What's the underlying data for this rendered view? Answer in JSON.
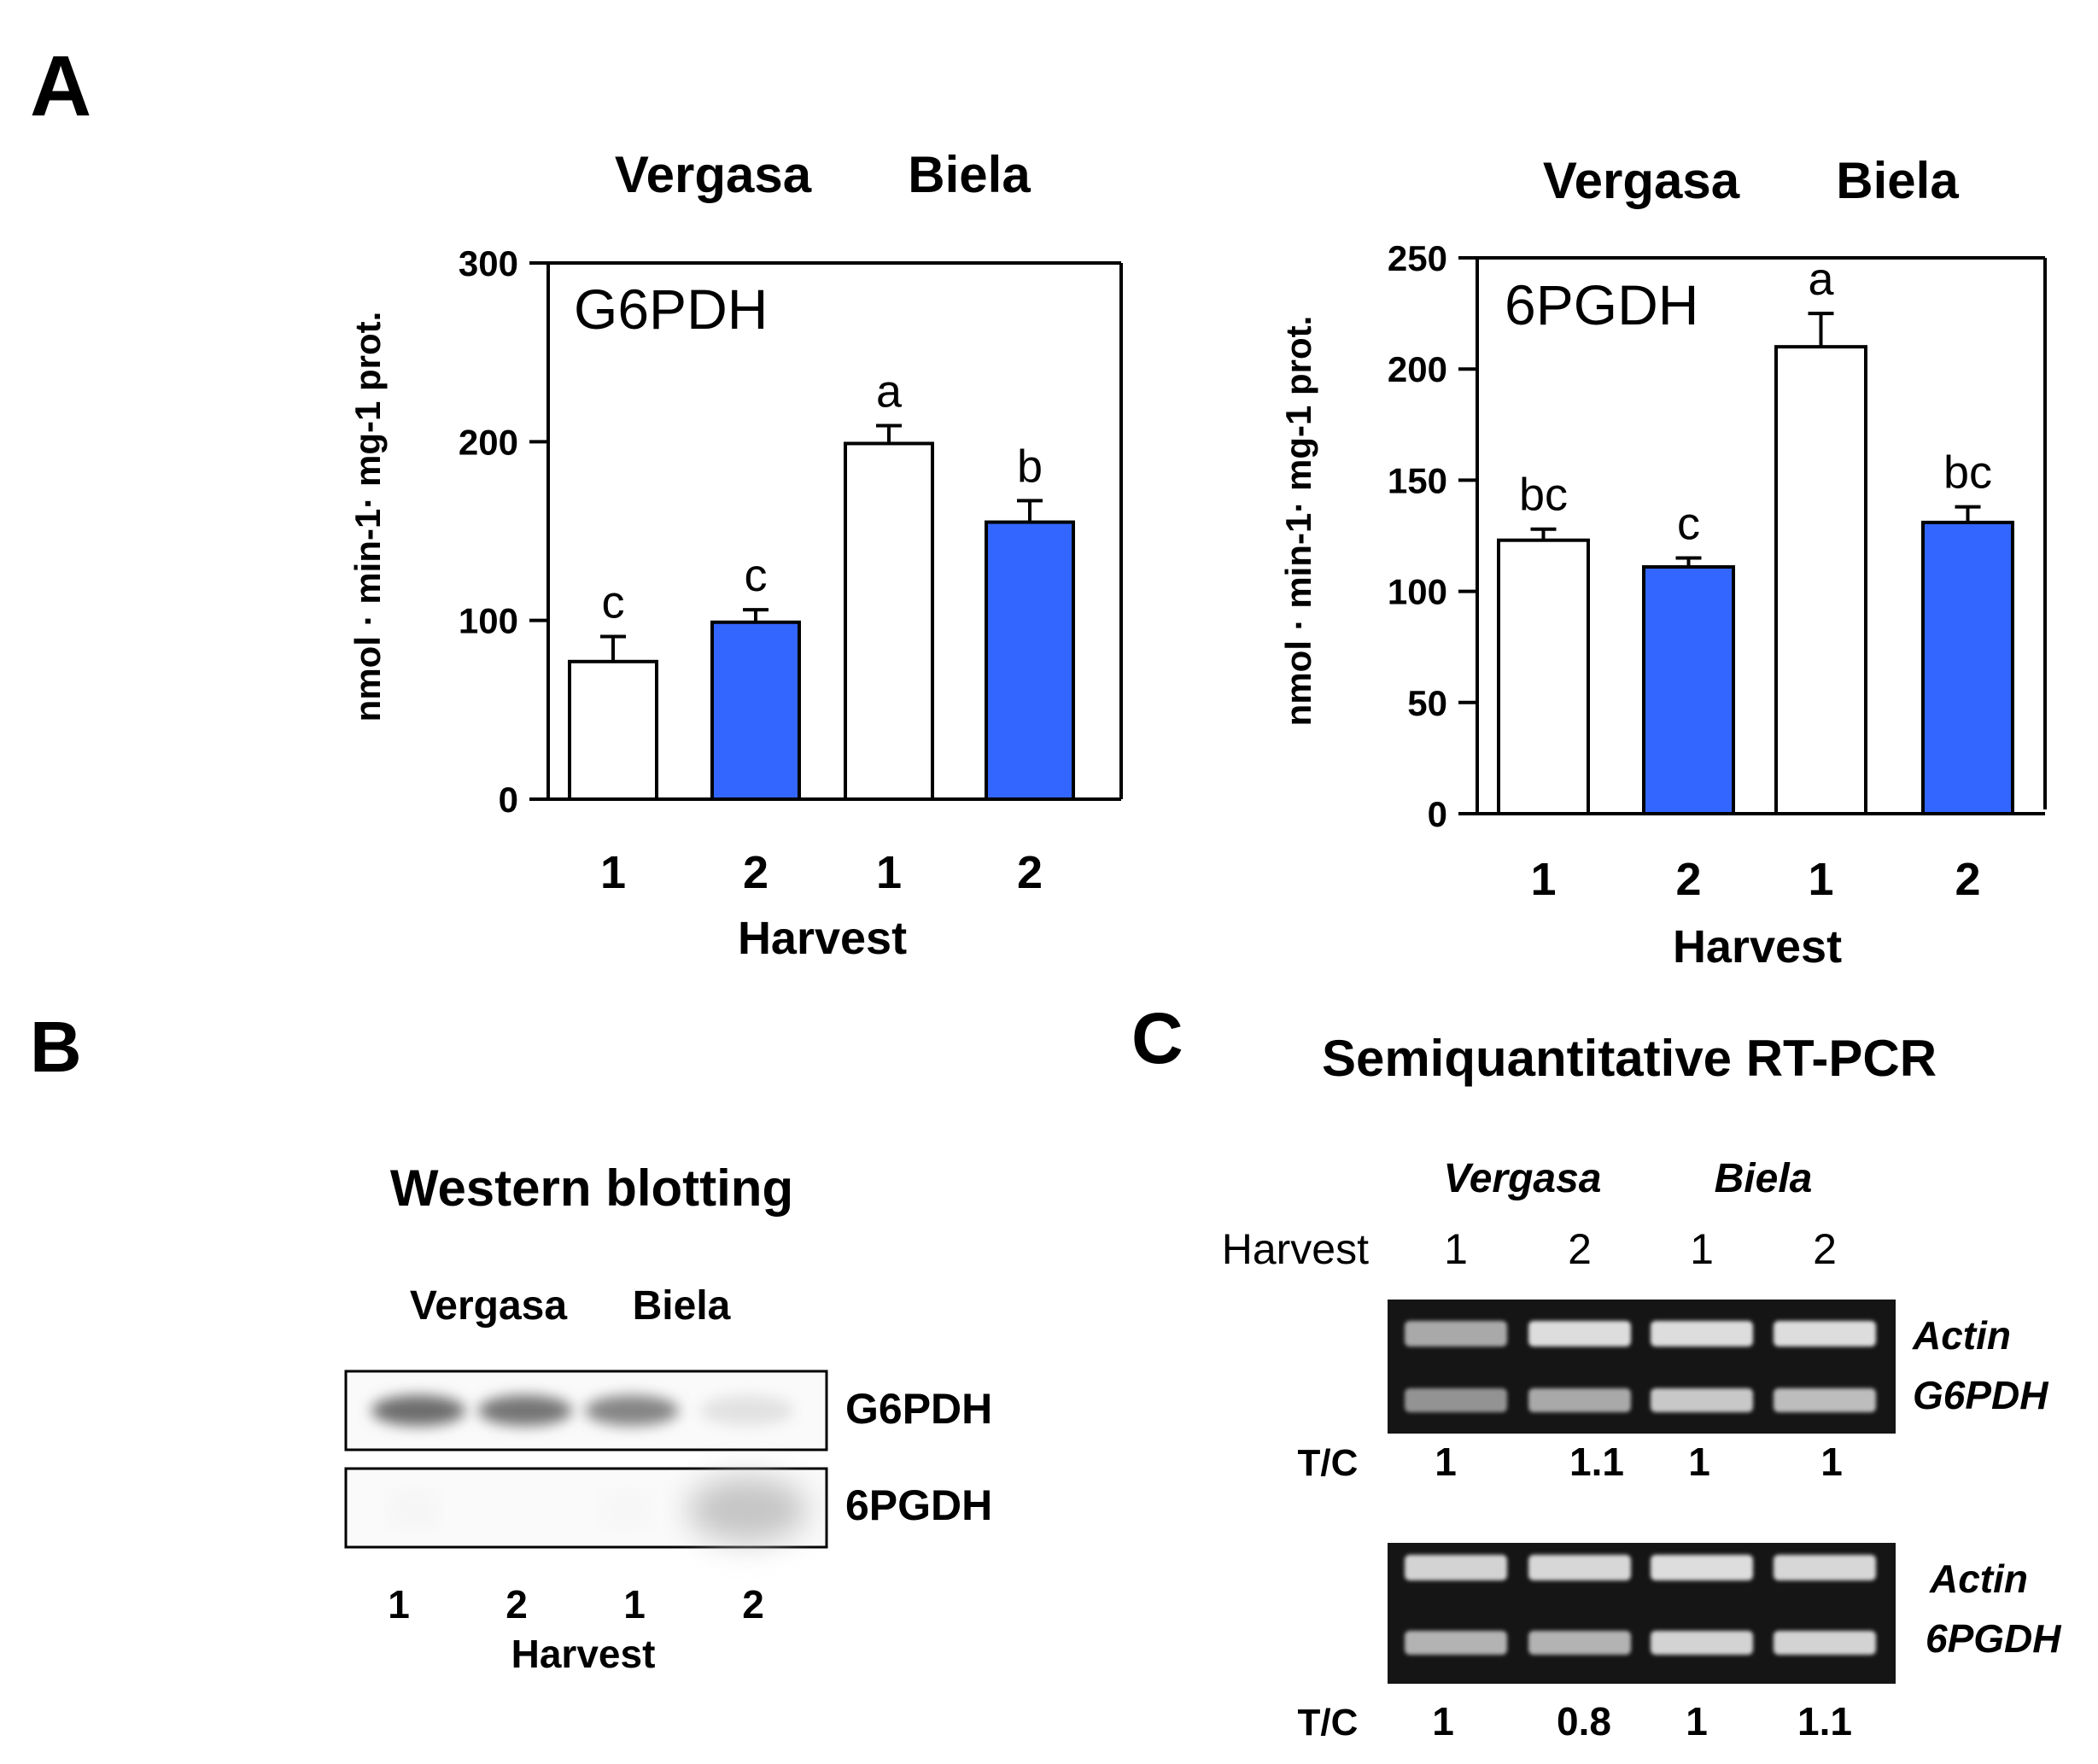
{
  "panels": {
    "A": "A",
    "B": "B",
    "C": "C"
  },
  "colors": {
    "open_bar": "#ffffff",
    "filled_bar": "#3366ff",
    "axis": "#000000",
    "gel_background": "#151515",
    "gel_band": "#e8e8e8",
    "blot_band": "#6a6a6a"
  },
  "chart_data": [
    {
      "type": "bar",
      "title": "G6PDH",
      "group_labels": [
        "Vergasa",
        "Biela"
      ],
      "categories": [
        "1",
        "2",
        "1",
        "2"
      ],
      "xlabel": "Harvest",
      "ylabel": "nmol · min-1· mg-1 prot.",
      "ylim": [
        0,
        300
      ],
      "yticks": [
        0,
        100,
        200,
        300
      ],
      "values": [
        77,
        99,
        199,
        155
      ],
      "errors": [
        14,
        7,
        10,
        12
      ],
      "significance": [
        "c",
        "c",
        "a",
        "b"
      ],
      "bar_fill": [
        "open",
        "filled",
        "open",
        "filled"
      ]
    },
    {
      "type": "bar",
      "title": "6PGDH",
      "group_labels": [
        "Vergasa",
        "Biela"
      ],
      "categories": [
        "1",
        "2",
        "1",
        "2"
      ],
      "xlabel": "Harvest",
      "ylabel": "nmol · min-1· mg-1 prot.",
      "ylim": [
        0,
        250
      ],
      "yticks": [
        0,
        50,
        100,
        150,
        200,
        250
      ],
      "values": [
        123,
        111,
        210,
        131
      ],
      "errors": [
        5,
        4,
        15,
        7
      ],
      "significance": [
        "bc",
        "c",
        "a",
        "bc"
      ],
      "bar_fill": [
        "open",
        "filled",
        "open",
        "filled"
      ]
    }
  ],
  "western": {
    "title": "Western blotting",
    "group_labels": [
      "Vergasa",
      "Biela"
    ],
    "rows": [
      "G6PDH",
      "6PGDH"
    ],
    "lanes": [
      "1",
      "2",
      "1",
      "2"
    ],
    "xlabel": "Harvest",
    "g6pdh_band_intensity": [
      0.85,
      0.8,
      0.7,
      0.12
    ],
    "pgdh_band_intensity": [
      0.05,
      0.0,
      0.03,
      0.3
    ]
  },
  "rtpcr": {
    "title": "Semiquantitative RT-PCR",
    "group_labels": [
      "Vergasa",
      "Biela"
    ],
    "harvest_label": "Harvest",
    "lanes": [
      "1",
      "2",
      "1",
      "2"
    ],
    "gel1": {
      "labels": [
        "Actin",
        "G6PDH"
      ],
      "tc_label": "T/C",
      "tc": [
        "1",
        "1.1",
        "1",
        "1"
      ]
    },
    "gel2": {
      "labels": [
        "Actin",
        "6PGDH"
      ],
      "tc_label": "T/C",
      "tc": [
        "1",
        "0.8",
        "1",
        "1.1"
      ]
    }
  }
}
